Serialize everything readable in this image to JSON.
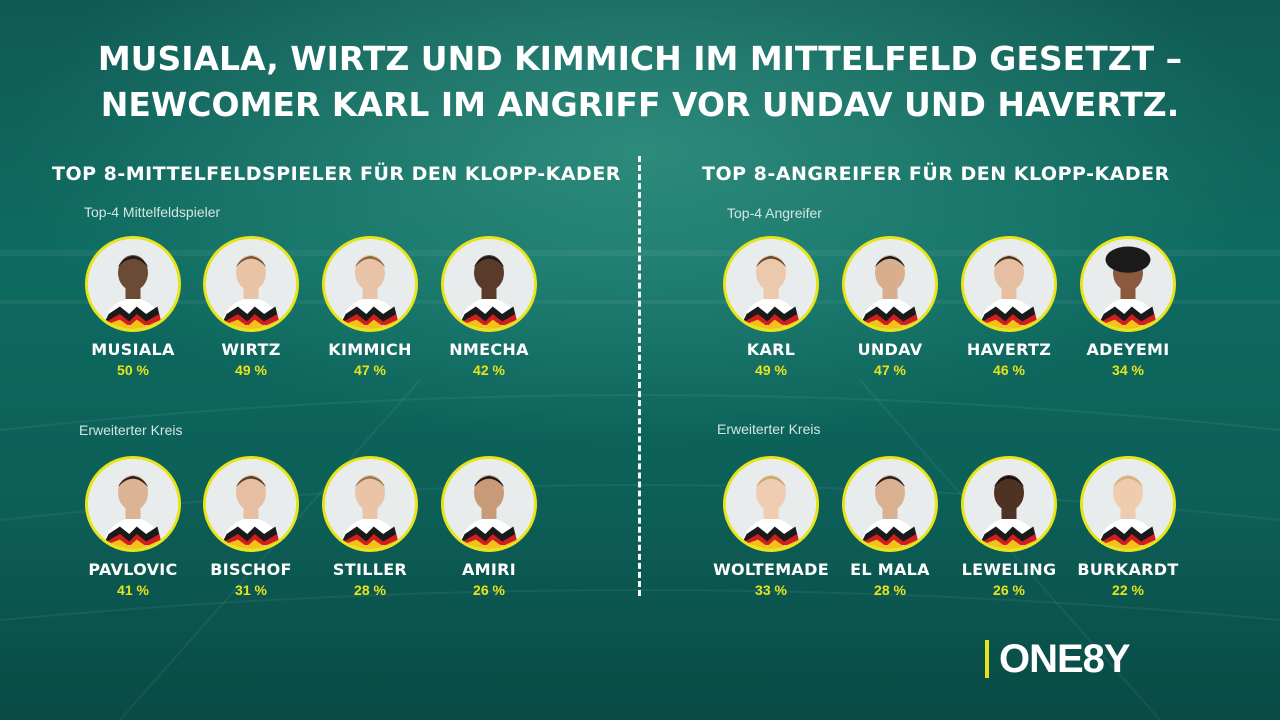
{
  "headline": {
    "line1": "MUSIALA, WIRTZ UND KIMMICH IM MITTELFELD GESETZT –",
    "line2": "NEWCOMER KARL IM ANGRIFF VOR UNDAV UND HAVERTZ."
  },
  "midfield": {
    "title": "TOP 8-MITTELFELDSPIELER FÜR DEN KLOPP-KADER",
    "top_label": "Top-4 Mittelfeldspieler",
    "extended_label": "Erweiterter Kreis",
    "top": [
      {
        "name": "MUSIALA",
        "pct": "50 %"
      },
      {
        "name": "WIRTZ",
        "pct": "49 %"
      },
      {
        "name": "KIMMICH",
        "pct": "47 %"
      },
      {
        "name": "NMECHA",
        "pct": "42 %"
      }
    ],
    "extended": [
      {
        "name": "PAVLOVIC",
        "pct": "41 %"
      },
      {
        "name": "BISCHOF",
        "pct": "31 %"
      },
      {
        "name": "STILLER",
        "pct": "28 %"
      },
      {
        "name": "AMIRI",
        "pct": "26 %"
      }
    ]
  },
  "attack": {
    "title": "TOP 8-ANGREIFER FÜR DEN KLOPP-KADER",
    "top_label": "Top-4 Angreifer",
    "extended_label": "Erweiterter Kreis",
    "top": [
      {
        "name": "KARL",
        "pct": "49 %"
      },
      {
        "name": "UNDAV",
        "pct": "47 %"
      },
      {
        "name": "HAVERTZ",
        "pct": "46 %"
      },
      {
        "name": "ADEYEMI",
        "pct": "34 %"
      }
    ],
    "extended": [
      {
        "name": "WOLTEMADE",
        "pct": "33 %"
      },
      {
        "name": "EL MALA",
        "pct": "28 %"
      },
      {
        "name": "LEWELING",
        "pct": "26 %"
      },
      {
        "name": "BURKARDT",
        "pct": "22 %"
      }
    ]
  },
  "brand": {
    "logo_text": "ONE8Y"
  },
  "colors": {
    "accent": "#e8e41a",
    "background": "#0e6b61",
    "text": "#ffffff"
  }
}
